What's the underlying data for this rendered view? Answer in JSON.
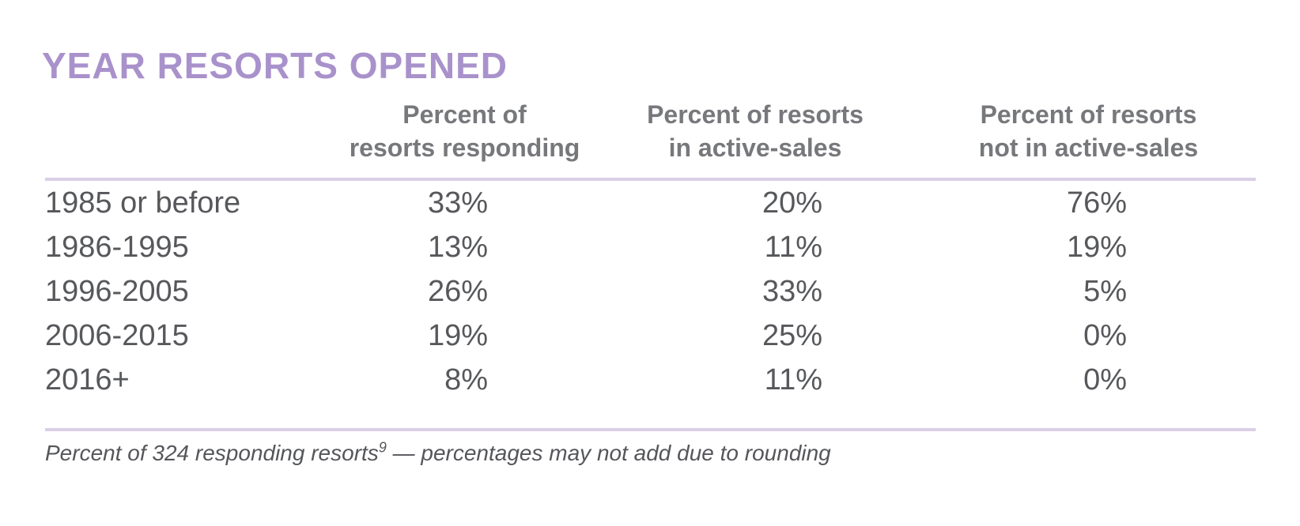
{
  "title": "YEAR RESORTS OPENED",
  "colors": {
    "title_purple": "#A992CB",
    "rule_lavender": "#D9CFE6",
    "header_gray": "#77787B",
    "body_gray": "#57585B",
    "background": "#FFFFFF"
  },
  "table": {
    "headers": [
      {
        "line1": "",
        "line2": ""
      },
      {
        "line1": "Percent of",
        "line2": "resorts responding"
      },
      {
        "line1": "Percent of resorts",
        "line2": "in active-sales"
      },
      {
        "line1": "Percent of resorts",
        "line2": "not in active-sales"
      }
    ],
    "rows": [
      {
        "label": "1985 or before",
        "values": [
          "33%",
          "20%",
          "76%"
        ]
      },
      {
        "label": "1986-1995",
        "values": [
          "13%",
          "11%",
          "19%"
        ]
      },
      {
        "label": "1996-2005",
        "values": [
          "26%",
          "33%",
          "5%"
        ]
      },
      {
        "label": "2006-2015",
        "values": [
          "19%",
          "25%",
          "0%"
        ]
      },
      {
        "label": "2016+",
        "values": [
          "8%",
          "11%",
          "0%"
        ]
      }
    ]
  },
  "footnote": {
    "prefix": "Percent of 324 responding resorts",
    "superscript": "9",
    "suffix": " — percentages may not add due to rounding"
  },
  "chart_data": {
    "type": "table",
    "title": "YEAR RESORTS OPENED",
    "categories": [
      "1985 or before",
      "1986-1995",
      "1996-2005",
      "2006-2015",
      "2016+"
    ],
    "series": [
      {
        "name": "Percent of resorts responding",
        "values": [
          33,
          13,
          26,
          19,
          8
        ]
      },
      {
        "name": "Percent of resorts in active-sales",
        "values": [
          20,
          11,
          33,
          25,
          11
        ]
      },
      {
        "name": "Percent of resorts not in active-sales",
        "values": [
          76,
          19,
          5,
          0,
          0
        ]
      }
    ],
    "unit": "%",
    "note": "Percent of 324 responding resorts9 — percentages may not add due to rounding"
  }
}
